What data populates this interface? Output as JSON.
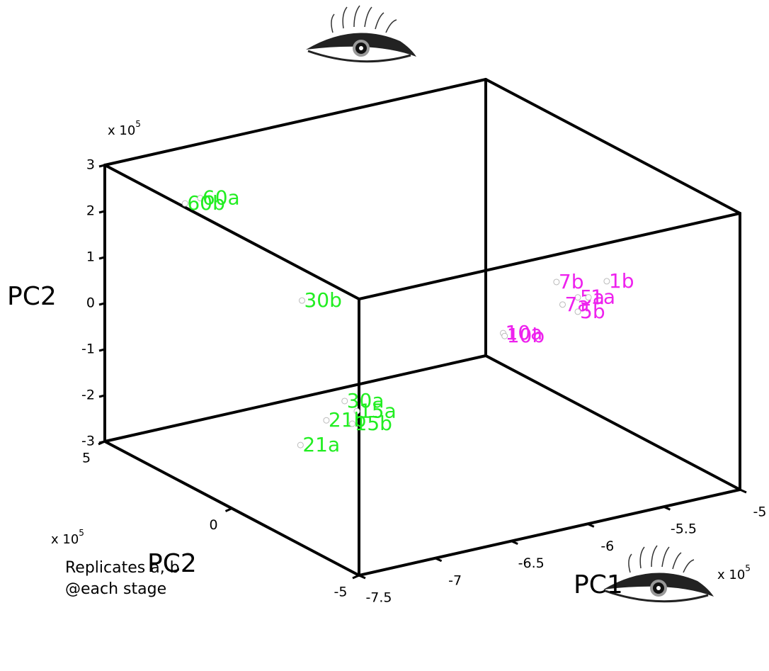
{
  "chart_data": {
    "type": "scatter3d",
    "x_label": "PC1",
    "y_label": "PC2",
    "z_label": "PC2",
    "x_exponent": {
      "base": "x 10",
      "power": "5"
    },
    "y_exponent": {
      "base": "x 10",
      "power": "5"
    },
    "z_exponent": {
      "base": "x 10",
      "power": "5"
    },
    "xlim": [
      -7.5,
      -5
    ],
    "ylim": [
      -5,
      5
    ],
    "zlim": [
      -3,
      3
    ],
    "xticks": [
      -7.5,
      -7,
      -6.5,
      -6,
      -5.5,
      -5
    ],
    "yticks": [
      -5,
      0,
      5
    ],
    "zticks": [
      -3,
      -2,
      -1,
      0,
      1,
      2,
      3
    ],
    "series": [
      {
        "color": "#22ee22",
        "points": [
          {
            "label": "60a",
            "x": -7.04,
            "y": 4,
            "z": 2.23
          },
          {
            "label": "60b",
            "x": -7.14,
            "y": 4,
            "z": 2.19
          },
          {
            "label": "30b",
            "x": -7.04,
            "y": 0,
            "z": 1.17
          },
          {
            "label": "30a",
            "x": -6.76,
            "y": 0,
            "z": -1.22
          },
          {
            "label": "15a",
            "x": -6.68,
            "y": 0,
            "z": -1.5
          },
          {
            "label": "21b",
            "x": -6.88,
            "y": 0,
            "z": -1.55
          },
          {
            "label": "15b",
            "x": -6.71,
            "y": 0,
            "z": -1.75
          },
          {
            "label": "21a",
            "x": -7.05,
            "y": 0,
            "z": -1.96
          }
        ]
      },
      {
        "color": "#ee22ee",
        "points": [
          {
            "label": "7b",
            "x": -5.37,
            "y": 0,
            "z": 0.33
          },
          {
            "label": "1b",
            "x": -5.04,
            "y": 0,
            "z": 0.1
          },
          {
            "label": "5a",
            "x": -5.23,
            "y": 0,
            "z": -0.11
          },
          {
            "label": "1a",
            "x": -5.16,
            "y": 0,
            "z": -0.16
          },
          {
            "label": "7a",
            "x": -5.33,
            "y": 0,
            "z": -0.19
          },
          {
            "label": "5b",
            "x": -5.23,
            "y": 0,
            "z": -0.42
          },
          {
            "label": "10a",
            "x": -5.72,
            "y": 0,
            "z": -0.52
          },
          {
            "label": "10b",
            "x": -5.71,
            "y": 0,
            "z": -0.59
          }
        ]
      }
    ],
    "annotation": [
      "Replicates a, b",
      "@each stage"
    ]
  }
}
